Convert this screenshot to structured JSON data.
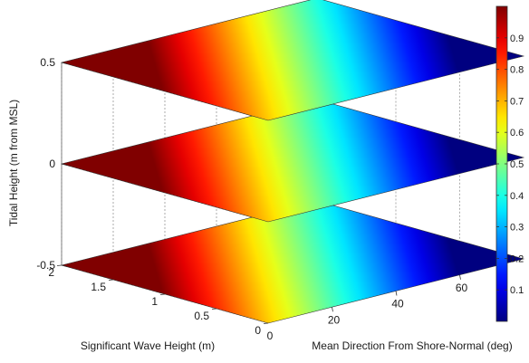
{
  "chart_data": {
    "type": "surface-slices",
    "title": "",
    "xlabel": "Significant Wave Height (m)",
    "ylabel": "Mean Direction From Shore-Normal (deg)",
    "zlabel": "Tidal Height (m from MSL)",
    "xlim": [
      0,
      2
    ],
    "ylim": [
      0,
      80
    ],
    "zlim": [
      -0.5,
      0.5
    ],
    "x_ticks": [
      "2",
      "1.5",
      "1",
      "0.5",
      "0"
    ],
    "x_tick_values": [
      2,
      1.5,
      1,
      0.5,
      0
    ],
    "y_ticks": [
      "20",
      "40",
      "60"
    ],
    "y_tick_values": [
      20,
      40,
      60
    ],
    "z_ticks": [
      "0.5",
      "0",
      "-0.5"
    ],
    "z_tick_values": [
      0.5,
      0,
      -0.5
    ],
    "slice_levels": [
      -0.5,
      0,
      0.5
    ],
    "colorbar": {
      "colormap": "jet",
      "clim": [
        0,
        1
      ],
      "ticks": [
        "0.9",
        "0.8",
        "0.7",
        "0.6",
        "0.5",
        "0.4",
        "0.3",
        "0.2",
        "0.1"
      ],
      "tick_values": [
        0.9,
        0.8,
        0.7,
        0.6,
        0.5,
        0.4,
        0.3,
        0.2,
        0.1
      ]
    },
    "grid": true
  }
}
